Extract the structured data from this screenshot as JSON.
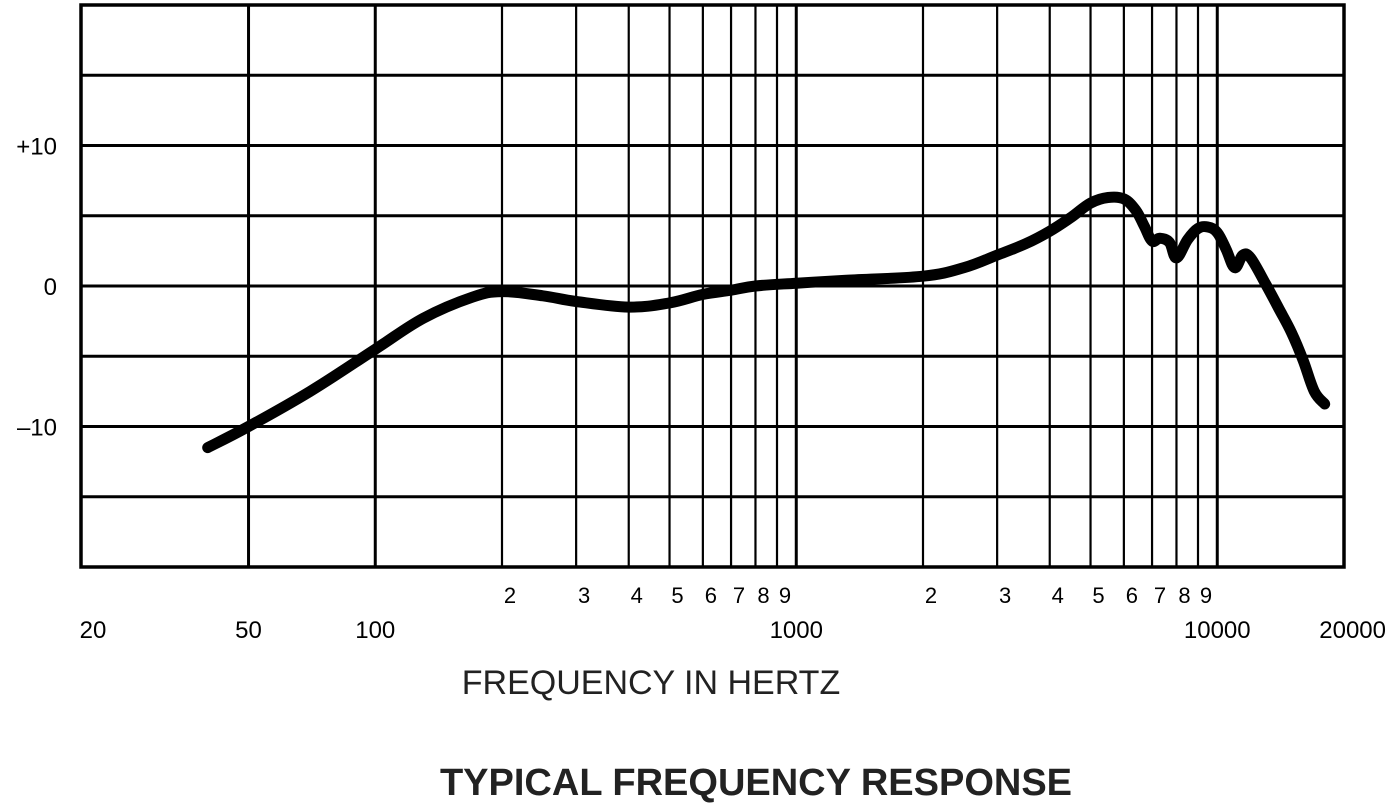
{
  "chart_data": {
    "type": "line",
    "title": "TYPICAL FREQUENCY RESPONSE",
    "xlabel": "FREQUENCY IN HERTZ",
    "ylabel": "",
    "x_scale": "log",
    "xlim": [
      20,
      20000
    ],
    "ylim": [
      -20,
      20
    ],
    "grid": true,
    "x_major_ticks": [
      {
        "value": 20,
        "label": "20"
      },
      {
        "value": 50,
        "label": "50"
      },
      {
        "value": 100,
        "label": "100"
      },
      {
        "value": 1000,
        "label": "1000"
      },
      {
        "value": 10000,
        "label": "10000"
      },
      {
        "value": 20000,
        "label": "20000"
      }
    ],
    "x_minor_ticks": [
      {
        "value": 200,
        "label": "2"
      },
      {
        "value": 300,
        "label": "3"
      },
      {
        "value": 400,
        "label": "4"
      },
      {
        "value": 500,
        "label": "5"
      },
      {
        "value": 600,
        "label": "6"
      },
      {
        "value": 700,
        "label": "7"
      },
      {
        "value": 800,
        "label": "8"
      },
      {
        "value": 900,
        "label": "9"
      },
      {
        "value": 2000,
        "label": "2"
      },
      {
        "value": 3000,
        "label": "3"
      },
      {
        "value": 4000,
        "label": "4"
      },
      {
        "value": 5000,
        "label": "5"
      },
      {
        "value": 6000,
        "label": "6"
      },
      {
        "value": 7000,
        "label": "7"
      },
      {
        "value": 8000,
        "label": "8"
      },
      {
        "value": 9000,
        "label": "9"
      }
    ],
    "y_ticks": [
      {
        "value": 10,
        "label": "+10"
      },
      {
        "value": 0,
        "label": "0"
      },
      {
        "value": -10,
        "label": "–10"
      }
    ],
    "y_gridlines": [
      -20,
      -15,
      -10,
      -5,
      0,
      5,
      10,
      15,
      20
    ],
    "series": [
      {
        "x": [
          40,
          50,
          70,
          100,
          130,
          170,
          200,
          250,
          300,
          400,
          500,
          600,
          700,
          800,
          1000,
          1300,
          2000,
          2500,
          3000,
          3500,
          4000,
          4500,
          5000,
          5500,
          6000,
          6400,
          6700,
          7000,
          7300,
          7700,
          8000,
          8500,
          9000,
          9500,
          10000,
          10500,
          11000,
          11500,
          12000,
          13000,
          14000,
          15000,
          16000,
          17000,
          18000
        ],
        "y": [
          -11.5,
          -10,
          -7.5,
          -4.5,
          -2.3,
          -0.8,
          -0.4,
          -0.7,
          -1.1,
          -1.5,
          -1.2,
          -0.6,
          -0.3,
          0,
          0.2,
          0.4,
          0.7,
          1.3,
          2.2,
          3.0,
          3.9,
          4.9,
          5.9,
          6.3,
          6.2,
          5.4,
          4.3,
          3.2,
          3.4,
          3.1,
          2.0,
          3.3,
          4.1,
          4.2,
          3.8,
          2.6,
          1.3,
          2.2,
          2.0,
          0.2,
          -1.6,
          -3.3,
          -5.3,
          -7.5,
          -8.4
        ]
      }
    ]
  }
}
